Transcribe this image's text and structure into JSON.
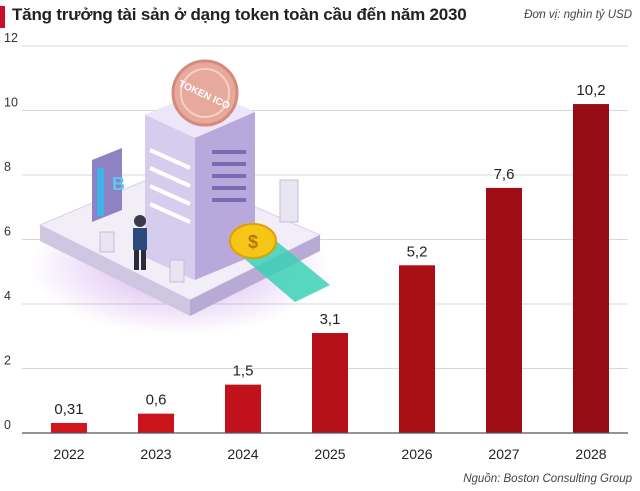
{
  "header": {
    "title": "Tăng trưởng tài sản ở dạng token toàn cầu đến năm 2030",
    "unit": "Đơn vị: nghìn tỷ USD"
  },
  "footer": {
    "source": "Nguồn: Boston Consulting Group"
  },
  "illustration": {
    "coin_text": "TOKEN ICO",
    "coin_symbol": "$",
    "server_symbol": "B"
  },
  "colors": {
    "bar_start": "#e0202a",
    "bar_end": "#9c0e12",
    "grid": "#d8d8d8",
    "title_accent": "#c8102e"
  },
  "chart_data": {
    "type": "bar",
    "title": "Tăng trưởng tài sản ở dạng token toàn cầu đến năm 2030",
    "xlabel": "",
    "ylabel": "",
    "unit": "Đơn vị: nghìn tỷ USD",
    "categories": [
      "2022",
      "2023",
      "2024",
      "2025",
      "2026",
      "2027",
      "2028"
    ],
    "values": [
      0.31,
      0.6,
      1.5,
      3.1,
      5.2,
      7.6,
      10.2
    ],
    "value_labels": [
      "0,31",
      "0,6",
      "1,5",
      "3,1",
      "5,2",
      "7,6",
      "10,2"
    ],
    "ylim": [
      0,
      12
    ],
    "yticks": [
      0,
      2,
      4,
      6,
      8,
      10,
      12
    ],
    "ytick_labels": [
      "0",
      "2",
      "4",
      "6",
      "8",
      "10",
      "12"
    ],
    "grid": true,
    "source": "Nguồn: Boston Consulting Group"
  }
}
